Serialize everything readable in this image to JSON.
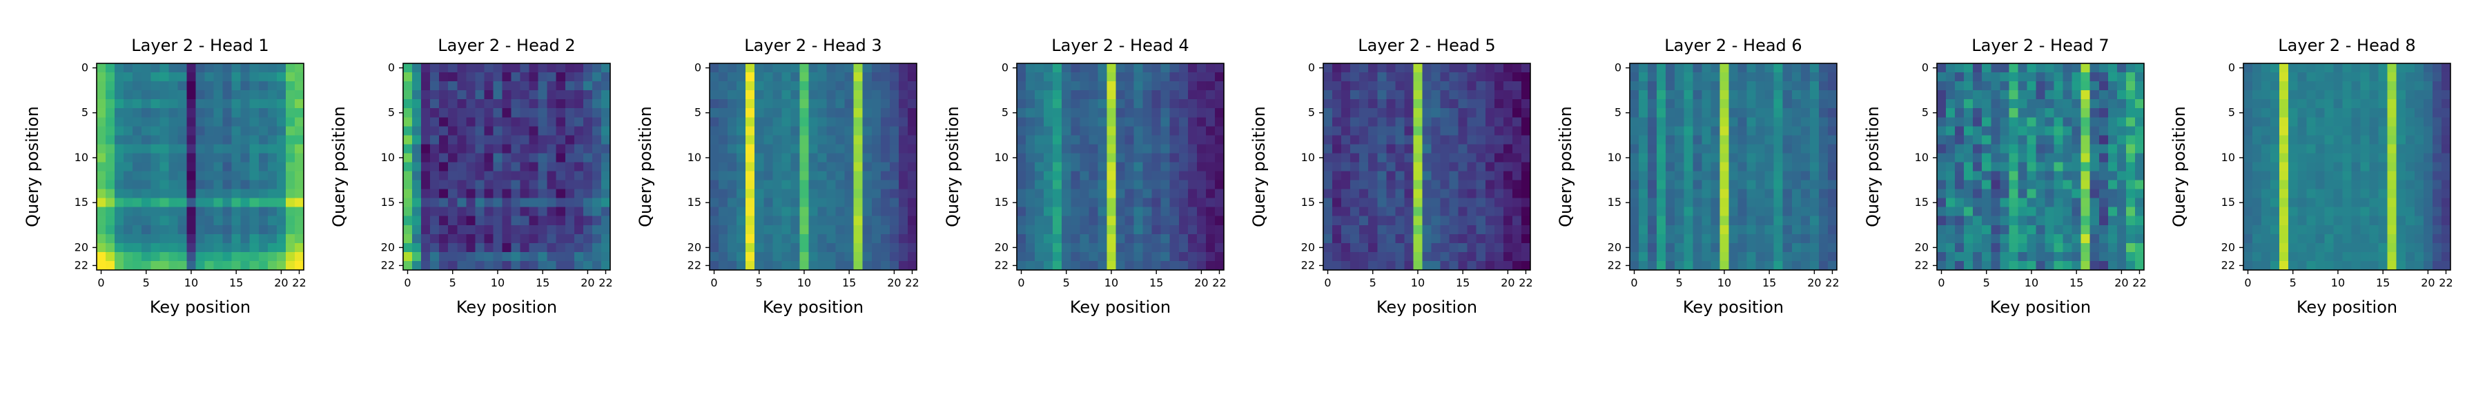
{
  "figure": {
    "colormap": "viridis",
    "colormap_stops": [
      "#440154",
      "#482878",
      "#3e4a89",
      "#31688e",
      "#26828e",
      "#1f9e89",
      "#35b779",
      "#6ece58",
      "#b5de2b",
      "#fde725"
    ]
  },
  "chart_data": [
    {
      "type": "heatmap",
      "title": "Layer 2 - Head 1",
      "xlabel": "Key position",
      "ylabel": "Query position",
      "x_ticks": [
        "0",
        "5",
        "10",
        "15",
        "20",
        "22"
      ],
      "y_ticks": [
        "0",
        "5",
        "10",
        "15",
        "20",
        "22"
      ],
      "grid": false,
      "rows": 23,
      "cols": 23,
      "column_profile": [
        0.75,
        0.65,
        0.45,
        0.42,
        0.4,
        0.38,
        0.42,
        0.45,
        0.4,
        0.38,
        0.05,
        0.32,
        0.35,
        0.38,
        0.32,
        0.4,
        0.35,
        0.42,
        0.38,
        0.4,
        0.45,
        0.7,
        0.72
      ],
      "row_profile": [
        0,
        0.05,
        0,
        0,
        0.05,
        0,
        0,
        0,
        0,
        0.05,
        0,
        0,
        0,
        0,
        0.05,
        0.2,
        0,
        0,
        0,
        0.05,
        0.1,
        0.25,
        0.3
      ],
      "noise": 0.05,
      "seed": 11
    },
    {
      "type": "heatmap",
      "title": "Layer 2 - Head 2",
      "xlabel": "Key position",
      "ylabel": "Query position",
      "x_ticks": [
        "0",
        "5",
        "10",
        "15",
        "20",
        "22"
      ],
      "y_ticks": [
        "0",
        "5",
        "10",
        "15",
        "20",
        "22"
      ],
      "grid": false,
      "rows": 23,
      "cols": 23,
      "column_profile": [
        0.7,
        0.45,
        0.1,
        0.2,
        0.12,
        0.15,
        0.18,
        0.12,
        0.22,
        0.15,
        0.25,
        0.12,
        0.2,
        0.18,
        0.15,
        0.22,
        0.18,
        0.12,
        0.15,
        0.2,
        0.25,
        0.3,
        0.35
      ],
      "row_profile": [
        0,
        0,
        0.05,
        0,
        0,
        0,
        0,
        0,
        0,
        0,
        0,
        0,
        0,
        0,
        0,
        0.1,
        0,
        0,
        0,
        0,
        0,
        0.15,
        0.1
      ],
      "noise": 0.1,
      "seed": 23
    },
    {
      "type": "heatmap",
      "title": "Layer 2 - Head 3",
      "xlabel": "Key position",
      "ylabel": "Query position",
      "x_ticks": [
        "0",
        "5",
        "10",
        "15",
        "20",
        "22"
      ],
      "y_ticks": [
        "0",
        "5",
        "10",
        "15",
        "20",
        "22"
      ],
      "grid": false,
      "rows": 23,
      "cols": 23,
      "column_profile": [
        0.3,
        0.32,
        0.35,
        0.4,
        0.95,
        0.4,
        0.38,
        0.4,
        0.42,
        0.4,
        0.72,
        0.4,
        0.38,
        0.36,
        0.35,
        0.34,
        0.85,
        0.34,
        0.3,
        0.28,
        0.25,
        0.15,
        0.12
      ],
      "row_profile": [
        0,
        0,
        0,
        0,
        0,
        0,
        0,
        0,
        0,
        0,
        0,
        0,
        0,
        0,
        0,
        0,
        0,
        0,
        0,
        0,
        0,
        0,
        0
      ],
      "noise": 0.05,
      "seed": 37
    },
    {
      "type": "heatmap",
      "title": "Layer 2 - Head 4",
      "xlabel": "Key position",
      "ylabel": "Query position",
      "x_ticks": [
        "0",
        "5",
        "10",
        "15",
        "20",
        "22"
      ],
      "y_ticks": [
        "0",
        "5",
        "10",
        "15",
        "20",
        "22"
      ],
      "grid": false,
      "rows": 23,
      "cols": 23,
      "column_profile": [
        0.3,
        0.35,
        0.38,
        0.45,
        0.55,
        0.35,
        0.3,
        0.32,
        0.3,
        0.35,
        0.88,
        0.3,
        0.28,
        0.35,
        0.3,
        0.25,
        0.3,
        0.22,
        0.2,
        0.15,
        0.12,
        0.1,
        0.08
      ],
      "row_profile": [
        0,
        0,
        0,
        0,
        0,
        0,
        0,
        0,
        0,
        0,
        0,
        0,
        0,
        0,
        0,
        0,
        0,
        0,
        0,
        0,
        0,
        0,
        0
      ],
      "noise": 0.06,
      "seed": 41
    },
    {
      "type": "heatmap",
      "title": "Layer 2 - Head 5",
      "xlabel": "Key position",
      "ylabel": "Query position",
      "x_ticks": [
        "0",
        "5",
        "10",
        "15",
        "20",
        "22"
      ],
      "y_ticks": [
        "0",
        "5",
        "10",
        "15",
        "20",
        "22"
      ],
      "grid": false,
      "rows": 23,
      "cols": 23,
      "column_profile": [
        0.25,
        0.15,
        0.18,
        0.2,
        0.22,
        0.18,
        0.25,
        0.2,
        0.22,
        0.18,
        0.82,
        0.3,
        0.28,
        0.25,
        0.22,
        0.2,
        0.18,
        0.2,
        0.15,
        0.12,
        0.1,
        0.08,
        0.05
      ],
      "row_profile": [
        0,
        0,
        0,
        0,
        0,
        0,
        0,
        0,
        0,
        0,
        0,
        0,
        0,
        0,
        0,
        0,
        0,
        0,
        0,
        0,
        0,
        0,
        0
      ],
      "noise": 0.08,
      "seed": 53
    },
    {
      "type": "heatmap",
      "title": "Layer 2 - Head 6",
      "xlabel": "Key position",
      "ylabel": "Query position",
      "x_ticks": [
        "0",
        "5",
        "10",
        "15",
        "20",
        "22"
      ],
      "y_ticks": [
        "0",
        "5",
        "10",
        "15",
        "20",
        "22"
      ],
      "grid": false,
      "rows": 23,
      "cols": 23,
      "column_profile": [
        0.35,
        0.45,
        0.3,
        0.55,
        0.35,
        0.4,
        0.5,
        0.35,
        0.42,
        0.38,
        0.88,
        0.38,
        0.35,
        0.42,
        0.38,
        0.4,
        0.5,
        0.35,
        0.38,
        0.35,
        0.42,
        0.3,
        0.28
      ],
      "row_profile": [
        0,
        0,
        0,
        0,
        0,
        0,
        0,
        0,
        0,
        0,
        0,
        0,
        0,
        0,
        0,
        0,
        0,
        0,
        0,
        0,
        0,
        0,
        0
      ],
      "noise": 0.05,
      "seed": 67
    },
    {
      "type": "heatmap",
      "title": "Layer 2 - Head 7",
      "xlabel": "Key position",
      "ylabel": "Query position",
      "x_ticks": [
        "0",
        "5",
        "10",
        "15",
        "20",
        "22"
      ],
      "y_ticks": [
        "0",
        "5",
        "10",
        "15",
        "20",
        "22"
      ],
      "grid": false,
      "rows": 23,
      "cols": 23,
      "column_profile": [
        0.3,
        0.45,
        0.35,
        0.5,
        0.35,
        0.45,
        0.3,
        0.4,
        0.6,
        0.45,
        0.5,
        0.35,
        0.4,
        0.55,
        0.45,
        0.4,
        0.78,
        0.35,
        0.3,
        0.45,
        0.4,
        0.6,
        0.55
      ],
      "row_profile": [
        0,
        0,
        0,
        0,
        0,
        0,
        0,
        0,
        0,
        0,
        0,
        0,
        0,
        0,
        0,
        0,
        0,
        0,
        0,
        0,
        0,
        0,
        0
      ],
      "noise": 0.15,
      "seed": 79
    },
    {
      "type": "heatmap",
      "title": "Layer 2 - Head 8",
      "xlabel": "Key position",
      "ylabel": "Query position",
      "x_ticks": [
        "0",
        "5",
        "10",
        "15",
        "20",
        "22"
      ],
      "y_ticks": [
        "0",
        "5",
        "10",
        "15",
        "20",
        "22"
      ],
      "grid": false,
      "rows": 23,
      "cols": 23,
      "column_profile": [
        0.35,
        0.4,
        0.42,
        0.45,
        0.9,
        0.45,
        0.42,
        0.45,
        0.42,
        0.45,
        0.42,
        0.45,
        0.42,
        0.45,
        0.42,
        0.45,
        0.85,
        0.45,
        0.42,
        0.4,
        0.35,
        0.25,
        0.2
      ],
      "row_profile": [
        0,
        0,
        0,
        0,
        0,
        0,
        0,
        0,
        0,
        0,
        0,
        0,
        0,
        0,
        0,
        0,
        0,
        0,
        0,
        0,
        0,
        0,
        0
      ],
      "noise": 0.04,
      "seed": 89
    }
  ]
}
